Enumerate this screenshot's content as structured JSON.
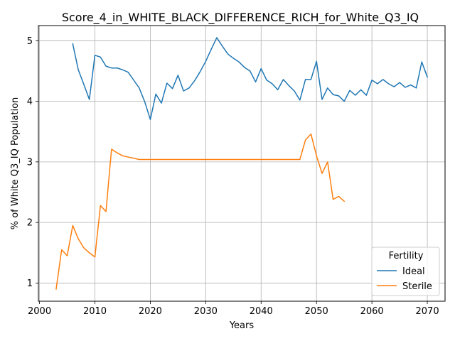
{
  "chart_data": {
    "type": "line",
    "title": "Score_4_in_WHITE_BLACK_DIFFERENCE_RICH_for_White_Q3_IQ",
    "xlabel": "Years",
    "ylabel": "% of White Q3_IQ Population",
    "xlim": [
      1999.8,
      2073.2
    ],
    "ylim": [
      0.7,
      5.25
    ],
    "xticks": [
      2000,
      2010,
      2020,
      2030,
      2040,
      2050,
      2060,
      2070
    ],
    "yticks": [
      1,
      2,
      3,
      4,
      5
    ],
    "grid": true,
    "legend": {
      "title": "Fertility",
      "placement": "lower-right"
    },
    "series": [
      {
        "name": "Ideal",
        "color": "#1f77b4",
        "x": [
          2006,
          2007,
          2008,
          2009,
          2010,
          2011,
          2012,
          2013,
          2014,
          2015,
          2016,
          2017,
          2018,
          2019,
          2020,
          2021,
          2022,
          2023,
          2024,
          2025,
          2026,
          2027,
          2028,
          2029,
          2030,
          2031,
          2032,
          2033,
          2034,
          2035,
          2036,
          2037,
          2038,
          2039,
          2040,
          2041,
          2042,
          2043,
          2044,
          2045,
          2046,
          2047,
          2048,
          2049,
          2050,
          2051,
          2052,
          2053,
          2054,
          2055,
          2056,
          2057,
          2058,
          2059,
          2060,
          2061,
          2062,
          2063,
          2064,
          2065,
          2066,
          2067,
          2068,
          2069,
          2070
        ],
        "values": [
          4.95,
          4.52,
          4.28,
          4.03,
          4.76,
          4.73,
          4.58,
          4.55,
          4.55,
          4.52,
          4.48,
          4.35,
          4.22,
          3.99,
          3.7,
          4.12,
          3.97,
          4.3,
          4.21,
          4.43,
          4.17,
          4.22,
          4.34,
          4.49,
          4.66,
          4.86,
          5.05,
          4.91,
          4.78,
          4.71,
          4.65,
          4.56,
          4.5,
          4.32,
          4.54,
          4.35,
          4.29,
          4.19,
          4.36,
          4.26,
          4.17,
          4.02,
          4.36,
          4.36,
          4.66,
          4.03,
          4.22,
          4.11,
          4.09,
          4.0,
          4.18,
          4.1,
          4.19,
          4.1,
          4.35,
          4.29,
          4.36,
          4.29,
          4.24,
          4.31,
          4.23,
          4.27,
          4.22,
          4.65,
          4.4
        ]
      },
      {
        "name": "Sterile",
        "color": "#ff7f0e",
        "x": [
          2003,
          2004,
          2005,
          2006,
          2007,
          2008,
          2009,
          2010,
          2011,
          2012,
          2013,
          2014,
          2015,
          2016,
          2017,
          2018,
          2019,
          2020,
          2030,
          2040,
          2047,
          2048,
          2049,
          2050,
          2051,
          2052,
          2053,
          2054,
          2055
        ],
        "values": [
          0.9,
          1.55,
          1.45,
          1.95,
          1.73,
          1.58,
          1.5,
          1.43,
          2.28,
          2.18,
          3.21,
          3.15,
          3.1,
          3.08,
          3.06,
          3.04,
          3.04,
          3.04,
          3.04,
          3.04,
          3.04,
          3.36,
          3.46,
          3.1,
          2.81,
          3.0,
          2.38,
          2.43,
          2.35
        ]
      }
    ]
  }
}
